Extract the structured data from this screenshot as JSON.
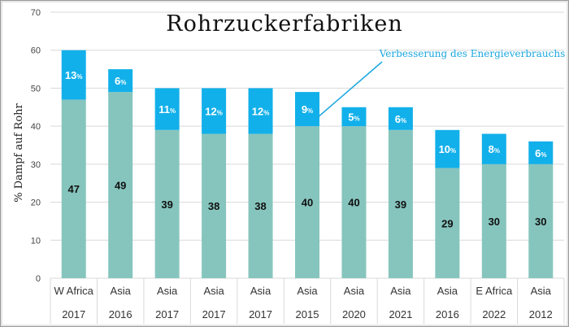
{
  "chart_data": {
    "type": "bar",
    "stacked": true,
    "title": "Rohrzuckerfabriken",
    "ylabel": "% Dampf auf Rohr",
    "xlabel": "",
    "ylim": [
      0,
      70
    ],
    "yticks": [
      "0",
      "10",
      "20",
      "30",
      "40",
      "50",
      "60",
      "70"
    ],
    "grid": true,
    "categories": [
      "W Africa",
      "Asia",
      "Asia",
      "Asia",
      "Asia",
      "Asia",
      "Asia",
      "Asia",
      "Asia",
      "E Africa",
      "Asia"
    ],
    "years": [
      "2017",
      "2016",
      "2017",
      "2017",
      "2017",
      "2015",
      "2020",
      "2021",
      "2016",
      "2022",
      "2012"
    ],
    "series": [
      {
        "values": [
          47,
          49,
          39,
          38,
          38,
          40,
          40,
          39,
          29,
          30,
          30
        ],
        "labels": [
          "47",
          "49",
          "39",
          "38",
          "38",
          "40",
          "40",
          "39",
          "29",
          "30",
          "30"
        ],
        "color": "#86c5be"
      },
      {
        "values": [
          13,
          6,
          11,
          12,
          12,
          9,
          5,
          6,
          10,
          8,
          6
        ],
        "labels": [
          "13",
          "6",
          "11",
          "12",
          "12",
          "9",
          "5",
          "6",
          "10",
          "8",
          "6"
        ],
        "label_suffix": "%",
        "color": "#12b0ea"
      }
    ],
    "annotation": {
      "text": "Verbesserung des Energieverbrauchs",
      "color": "#1aa7df"
    }
  }
}
